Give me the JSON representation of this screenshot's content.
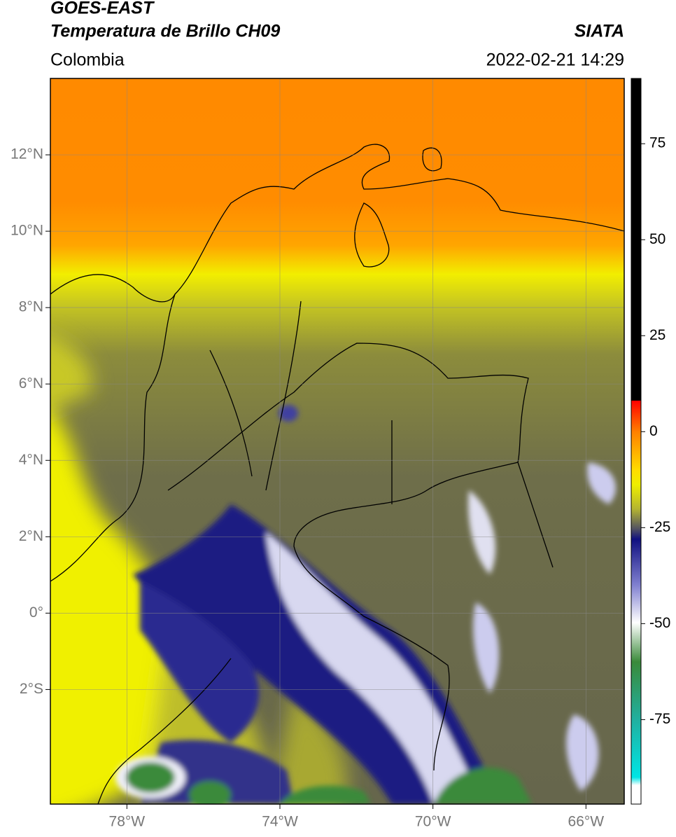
{
  "header": {
    "title": "GOES-EAST",
    "subtitle": "Temperatura de Brillo CH09",
    "source": "SIATA",
    "region": "Colombia",
    "timestamp": "2022-02-21 14:29"
  },
  "map": {
    "xlim": [
      -80,
      -65
    ],
    "ylim": [
      -5,
      14
    ],
    "grid": true,
    "xticks": [
      {
        "value": -78,
        "label": "78°W"
      },
      {
        "value": -74,
        "label": "74°W"
      },
      {
        "value": -70,
        "label": "70°W"
      },
      {
        "value": -66,
        "label": "66°W"
      }
    ],
    "yticks": [
      {
        "value": 12,
        "label": "12°N"
      },
      {
        "value": 10,
        "label": "10°N"
      },
      {
        "value": 8,
        "label": "8°N"
      },
      {
        "value": 6,
        "label": "6°N"
      },
      {
        "value": 4,
        "label": "4°N"
      },
      {
        "value": 2,
        "label": "2°N"
      },
      {
        "value": 0,
        "label": "0°"
      },
      {
        "value": -2,
        "label": "2°S"
      }
    ]
  },
  "colorbar": {
    "lim": [
      -97,
      92
    ],
    "ticks": [
      75,
      50,
      25,
      0,
      -25,
      -50,
      -75
    ]
  }
}
